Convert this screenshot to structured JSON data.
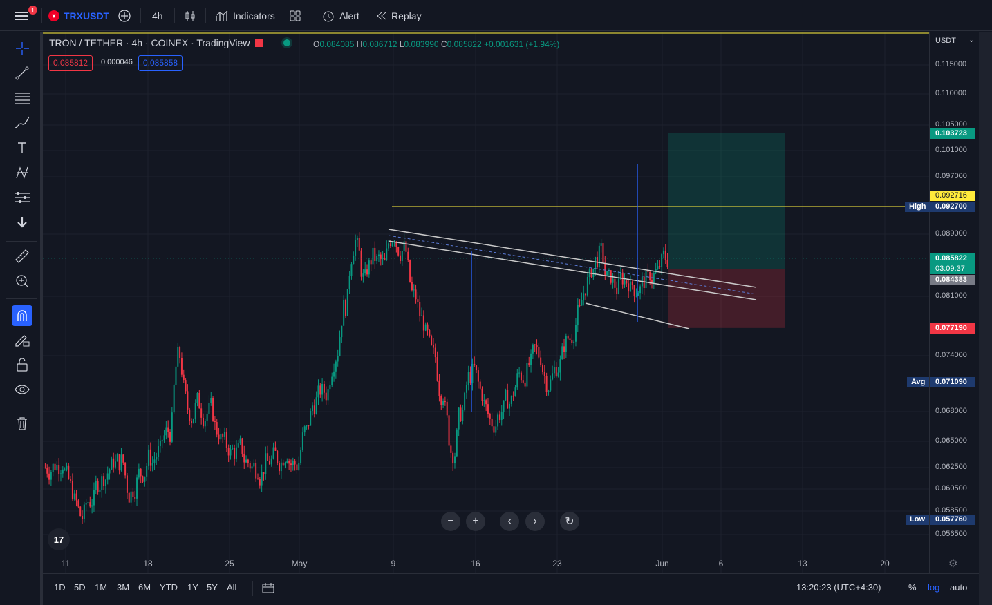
{
  "topbar": {
    "menu_badge": "1",
    "symbol": "TRXUSDT",
    "interval": "4h",
    "indicators": "Indicators",
    "alert": "Alert",
    "replay": "Replay"
  },
  "legend": {
    "title": "TRON / TETHER · 4h · COINEX · TradingView",
    "open_label": "O",
    "open": "0.084085",
    "high_label": "H",
    "high": "0.086712",
    "low_label": "L",
    "low": "0.083990",
    "close_label": "C",
    "close": "0.085822",
    "change": "+0.001631 (+1.94%)",
    "bid": "0.085812",
    "spread": "0.000046",
    "ask": "0.085858"
  },
  "yaxis": {
    "currency": "USDT",
    "ticks": [
      "0.115000",
      "0.110000",
      "0.105000",
      "0.101000",
      "0.097000",
      "0.089000",
      "0.081000",
      "0.074000",
      "0.068000",
      "0.065000",
      "0.062500",
      "0.060500",
      "0.058500",
      "0.056500"
    ],
    "tp_price": "0.103723",
    "alert_price": "0.092716",
    "high_label": "High",
    "high_price": "0.092700",
    "last_price": "0.085822",
    "countdown": "03:09:37",
    "entry_price": "0.084383",
    "sl_price": "0.077190",
    "avg_label": "Avg",
    "avg_price": "0.071090",
    "low_label": "Low",
    "low_price": "0.057760"
  },
  "xaxis": {
    "ticks": [
      "11",
      "18",
      "25",
      "May",
      "9",
      "16",
      "23",
      "Jun",
      "6",
      "13",
      "20"
    ]
  },
  "bottombar": {
    "ranges": [
      "1D",
      "5D",
      "1M",
      "3M",
      "6M",
      "YTD",
      "1Y",
      "5Y",
      "All"
    ],
    "time": "13:20:23 (UTC+4:30)",
    "percent": "%",
    "log": "log",
    "auto": "auto"
  },
  "logo": "17",
  "colors": {
    "up": "#089981",
    "down": "#f23645",
    "accent": "#2962ff",
    "high_line": "#d4c93a"
  },
  "chart_data": {
    "type": "candlestick",
    "title": "TRON / TETHER · 4h · COINEX",
    "last_close": 0.085822,
    "period_high": 0.0927,
    "period_low": 0.05776,
    "average": 0.07109,
    "long_position": {
      "entry": 0.084383,
      "take_profit": 0.103723,
      "stop_loss": 0.07719
    },
    "closes_approx": [
      0.0625,
      0.063,
      0.0605,
      0.058,
      0.0595,
      0.0612,
      0.0625,
      0.063,
      0.06,
      0.062,
      0.0635,
      0.064,
      0.066,
      0.074,
      0.068,
      0.069,
      0.068,
      0.066,
      0.0645,
      0.064,
      0.063,
      0.0625,
      0.063,
      0.0635,
      0.064,
      0.0628,
      0.066,
      0.069,
      0.07,
      0.074,
      0.08,
      0.088,
      0.083,
      0.086,
      0.085,
      0.089,
      0.087,
      0.081,
      0.078,
      0.074,
      0.07,
      0.064,
      0.068,
      0.072,
      0.07,
      0.067,
      0.068,
      0.069,
      0.072,
      0.073,
      0.074,
      0.071,
      0.073,
      0.076,
      0.079,
      0.083,
      0.086,
      0.083,
      0.082,
      0.083,
      0.082,
      0.083,
      0.084,
      0.0858
    ]
  }
}
